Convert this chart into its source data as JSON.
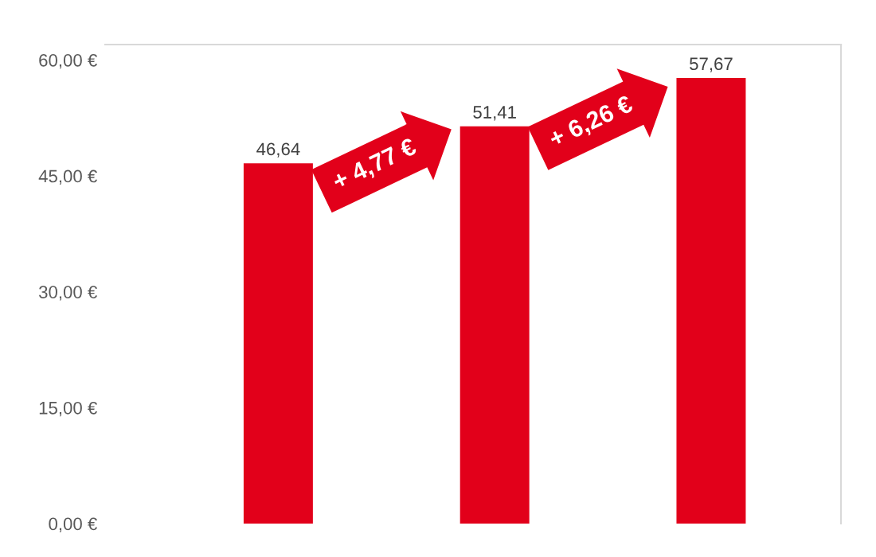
{
  "chart_data": {
    "type": "bar",
    "categories": [
      null,
      null,
      null
    ],
    "values": [
      46.64,
      51.41,
      57.67
    ],
    "color": "#e2001a",
    "ylim": [
      0,
      62
    ],
    "yticks": [
      {
        "value": 0,
        "label": "0,00 €"
      },
      {
        "value": 15,
        "label": "15,00 €"
      },
      {
        "value": 30,
        "label": "30,00 €"
      },
      {
        "value": 45,
        "label": "45,00 €"
      },
      {
        "value": 60,
        "label": "60,00 €"
      }
    ],
    "value_labels": [
      "46,64",
      "51,41",
      "57,67"
    ],
    "annotations": [
      "+ 4,77 €",
      "+ 6,26 €"
    ],
    "grid": false,
    "legend": false
  }
}
